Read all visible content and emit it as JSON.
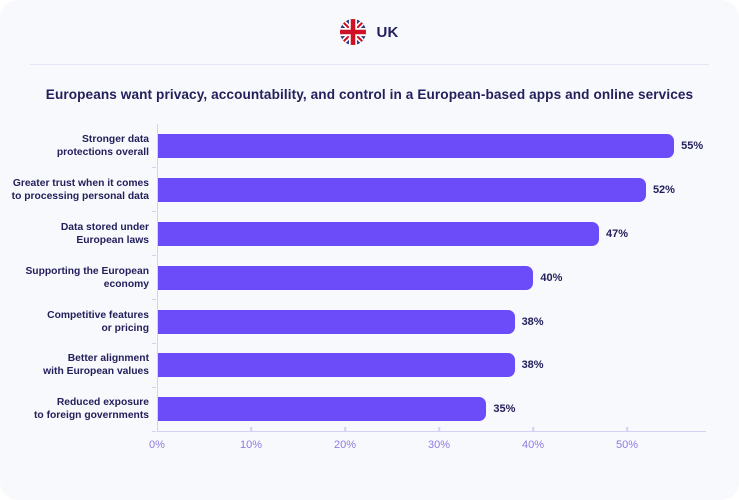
{
  "header": {
    "country_label": "UK",
    "flag_icon": "uk-flag-icon"
  },
  "title": "Europeans want privacy, accountability, and control in a European-based apps and online services",
  "chart_data": {
    "type": "bar",
    "orientation": "horizontal",
    "title": "Europeans want privacy, accountability, and control in a European-based apps and online services",
    "categories": [
      "Stronger data\nprotections overall",
      "Greater trust when it comes\nto processing personal data",
      "Data stored under\nEuropean laws",
      "Supporting the European\neconomy",
      "Competitive features\nor pricing",
      "Better alignment\nwith European values",
      "Reduced exposure\nto foreign governments"
    ],
    "values": [
      55,
      52,
      47,
      40,
      38,
      38,
      35
    ],
    "value_labels": [
      "55%",
      "52%",
      "47%",
      "40%",
      "38%",
      "38%",
      "35%"
    ],
    "xlabel": "",
    "ylabel": "",
    "x_tick_values": [
      0,
      10,
      20,
      30,
      40,
      50
    ],
    "x_tick_labels": [
      "0%",
      "10%",
      "20%",
      "30%",
      "40%",
      "50%"
    ],
    "xlim": [
      0,
      58.4
    ],
    "grid": false,
    "legend": false,
    "bar_color": "#6B4CF8",
    "axis_color": "#D6D0F3",
    "tick_label_color": "#8F7BE2",
    "text_color": "#23205C"
  }
}
